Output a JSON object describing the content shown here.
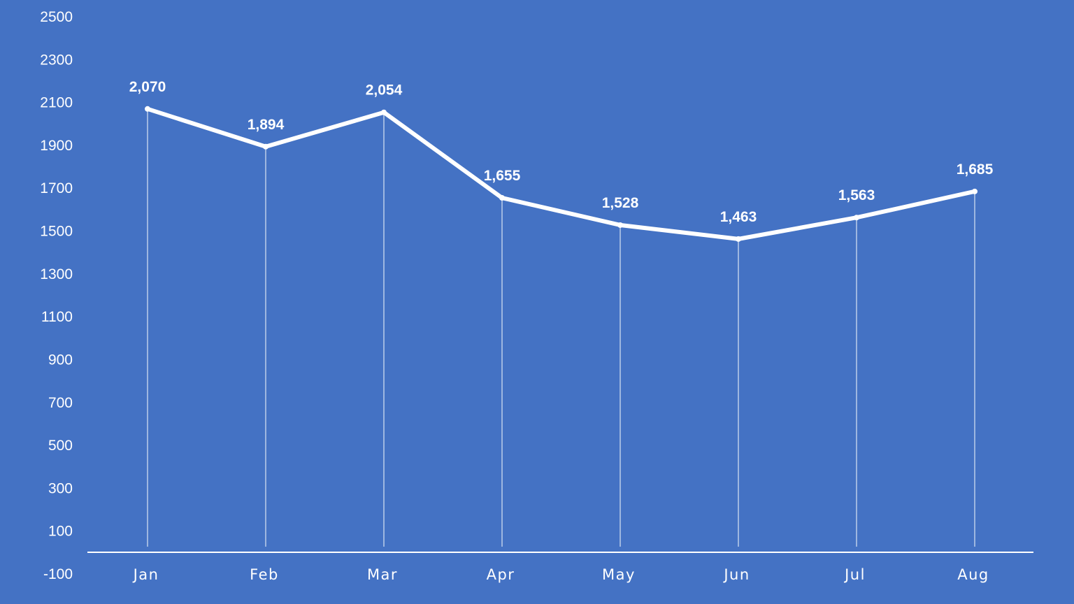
{
  "chart_data": {
    "type": "line",
    "title": "",
    "xlabel": "",
    "ylabel": "",
    "categories": [
      "Jan",
      "Feb",
      "Mar",
      "Apr",
      "May",
      "Jun",
      "Jul",
      "Aug"
    ],
    "series": [
      {
        "values": [
          2070,
          1894,
          2054,
          1655,
          1528,
          1463,
          1563,
          1685
        ],
        "data_labels": [
          "2,070",
          "1,894",
          "2,054",
          "1,655",
          "1,528",
          "1,463",
          "1,563",
          "1,685"
        ]
      }
    ],
    "ylim": [
      -100,
      2500
    ],
    "yticks": [
      "2500",
      "2300",
      "2100",
      "1900",
      "1700",
      "1500",
      "1300",
      "1100",
      "900",
      "700",
      "500",
      "300",
      "100",
      "-100"
    ],
    "drop_lines": true,
    "grid": false,
    "legend": "none",
    "colors": {
      "background": "#4472c4",
      "line": "#ffffff",
      "text": "#ffffff"
    }
  }
}
